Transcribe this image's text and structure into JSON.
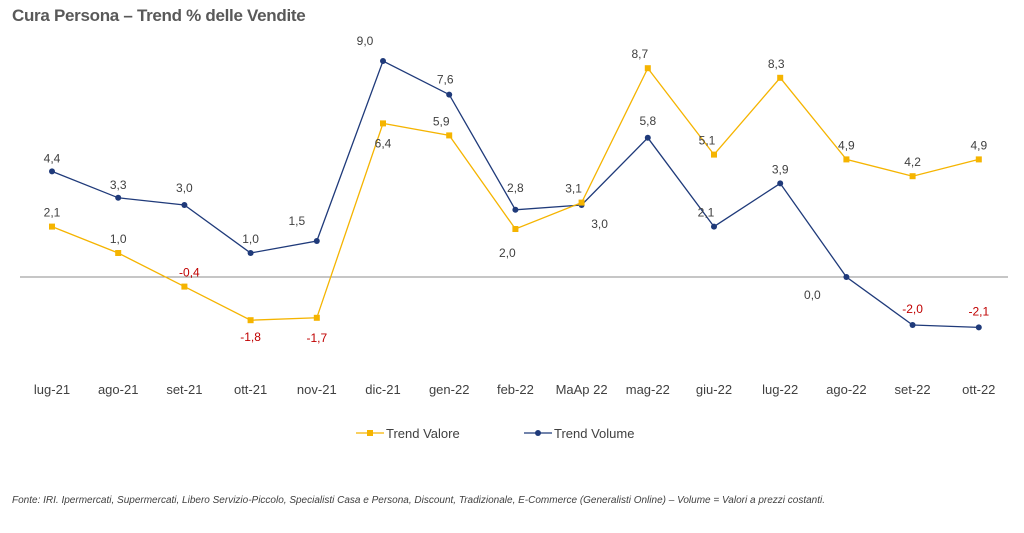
{
  "title": "Cura Persona – Trend % delle Vendite",
  "footnote": "Fonte: IRI. Ipermercati, Supermercati, Libero Servizio-Piccolo,  Specialisti Casa e Persona, Discount, Tradizionale, E-Commerce (Generalisti Online) –  Volume =  Valori a prezzi costanti.",
  "chart_data": {
    "type": "line",
    "categories": [
      "lug-21",
      "ago-21",
      "set-21",
      "ott-21",
      "nov-21",
      "dic-21",
      "gen-22",
      "feb-22",
      "MaAp 22",
      "mag-22",
      "giu-22",
      "lug-22",
      "ago-22",
      "set-22",
      "ott-22"
    ],
    "ylim": [
      -4,
      10
    ],
    "grid": false,
    "legend_position": "bottom",
    "series": [
      {
        "name": "Trend Valore",
        "color": "#F5B400",
        "values": [
          2.1,
          1.0,
          -0.4,
          -1.8,
          -1.7,
          6.4,
          5.9,
          2.0,
          3.1,
          8.7,
          5.1,
          8.3,
          4.9,
          4.2,
          4.9
        ],
        "labels": [
          "2,1",
          "1,0",
          "-0,4",
          "-1,8",
          "-1,7",
          "6,4",
          "5,9",
          "2,0",
          "3,1",
          "8,7",
          "5,1",
          "8,3",
          "4,9",
          "4,2",
          "4,9"
        ]
      },
      {
        "name": "Trend Volume",
        "color": "#1F3A7A",
        "values": [
          4.4,
          3.3,
          3.0,
          1.0,
          1.5,
          9.0,
          7.6,
          2.8,
          3.0,
          5.8,
          2.1,
          3.9,
          0.0,
          -2.0,
          -2.1
        ],
        "labels": [
          "4,4",
          "3,3",
          "3,0",
          "1,0",
          "1,5",
          "9,0",
          "7,6",
          "2,8",
          "3,0",
          "5,8",
          "2,1",
          "3,9",
          "0,0",
          "-2,0",
          "-2,1"
        ]
      }
    ]
  }
}
